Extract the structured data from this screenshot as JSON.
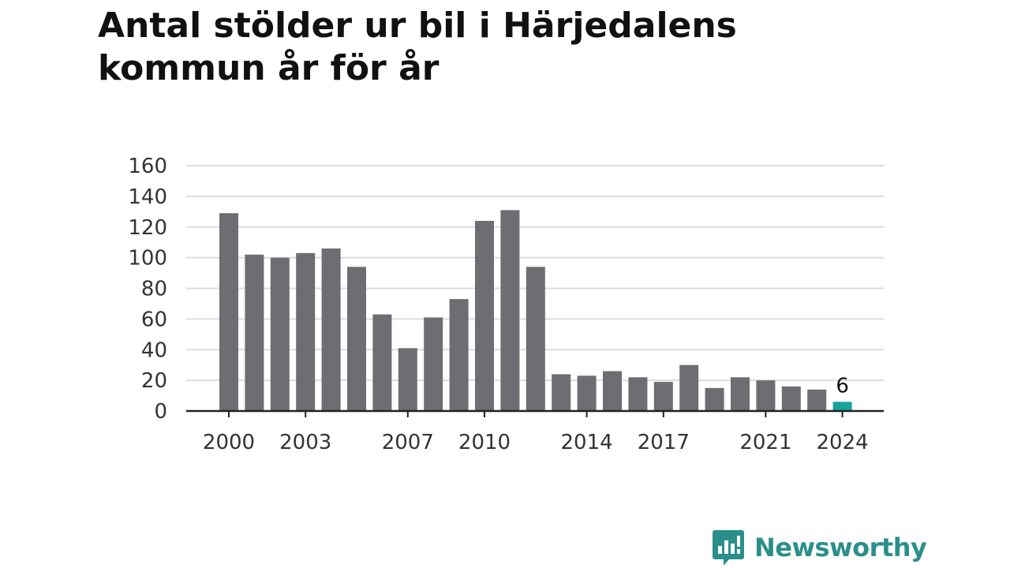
{
  "chart_data": {
    "type": "bar",
    "title": "Antal stölder ur bil i Härjedalens kommun år för år",
    "xlabel": "",
    "ylabel": "",
    "x": [
      2000,
      2001,
      2002,
      2003,
      2004,
      2005,
      2006,
      2007,
      2008,
      2009,
      2010,
      2011,
      2012,
      2013,
      2014,
      2015,
      2016,
      2017,
      2018,
      2019,
      2020,
      2021,
      2022,
      2023,
      2024
    ],
    "values": [
      129,
      102,
      100,
      103,
      106,
      94,
      63,
      41,
      61,
      73,
      124,
      131,
      94,
      24,
      23,
      26,
      22,
      19,
      30,
      15,
      22,
      20,
      16,
      14,
      6
    ],
    "x_tick_labels": [
      "2000",
      "2003",
      "2007",
      "2010",
      "2014",
      "2017",
      "2021",
      "2024"
    ],
    "y_ticks": [
      0,
      20,
      40,
      60,
      80,
      100,
      120,
      140,
      160
    ],
    "ylim": [
      0,
      160
    ],
    "grid": true,
    "highlight": {
      "year": 2024,
      "label": "6"
    },
    "colors": {
      "bar": "#6e6d72",
      "highlight": "#16a39a",
      "grid": "#dcdcdc",
      "axis": "#222222"
    }
  },
  "brand": {
    "name": "Newsworthy",
    "icon": "newsworthy-logo-icon",
    "color": "#2a8f8a"
  }
}
